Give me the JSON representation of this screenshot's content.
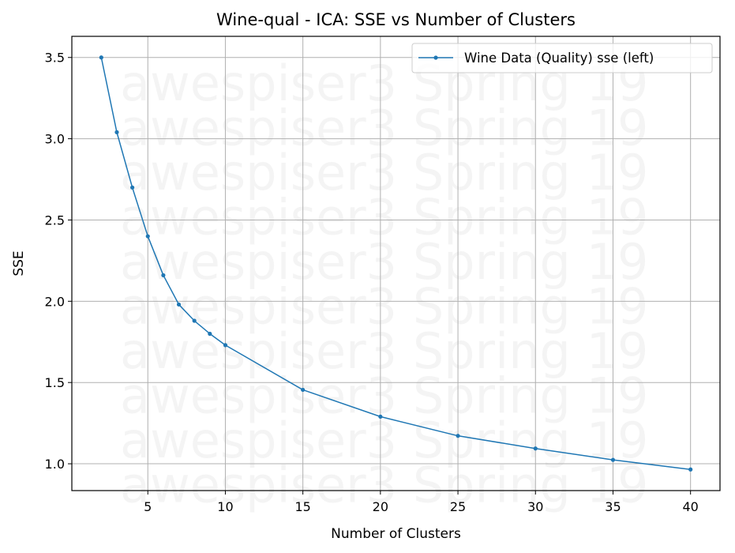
{
  "chart_data": {
    "type": "line",
    "title": "Wine-qual - ICA: SSE vs Number of Clusters",
    "xlabel": "Number of Clusters",
    "ylabel": "SSE",
    "xlim": [
      0.1,
      41.9
    ],
    "ylim": [
      0.835,
      3.63
    ],
    "xticks": [
      5,
      10,
      15,
      20,
      25,
      30,
      35,
      40
    ],
    "yticks": [
      1.0,
      1.5,
      2.0,
      2.5,
      3.0,
      3.5
    ],
    "xtick_labels": [
      "5",
      "10",
      "15",
      "20",
      "25",
      "30",
      "35",
      "40"
    ],
    "ytick_labels": [
      "1.0",
      "1.5",
      "2.0",
      "2.5",
      "3.0",
      "3.5"
    ],
    "grid": true,
    "legend_position": "top-right",
    "series": [
      {
        "name": "Wine Data (Quality) sse (left)",
        "color": "#1f77b4",
        "x": [
          2,
          3,
          4,
          5,
          6,
          7,
          8,
          9,
          10,
          15,
          20,
          25,
          30,
          35,
          40
        ],
        "y": [
          3.5,
          3.04,
          2.7,
          2.4,
          2.16,
          1.98,
          1.88,
          1.8,
          1.73,
          1.455,
          1.29,
          1.172,
          1.094,
          1.024,
          0.965
        ]
      }
    ],
    "watermark": "awespiser3 Spring 19"
  }
}
